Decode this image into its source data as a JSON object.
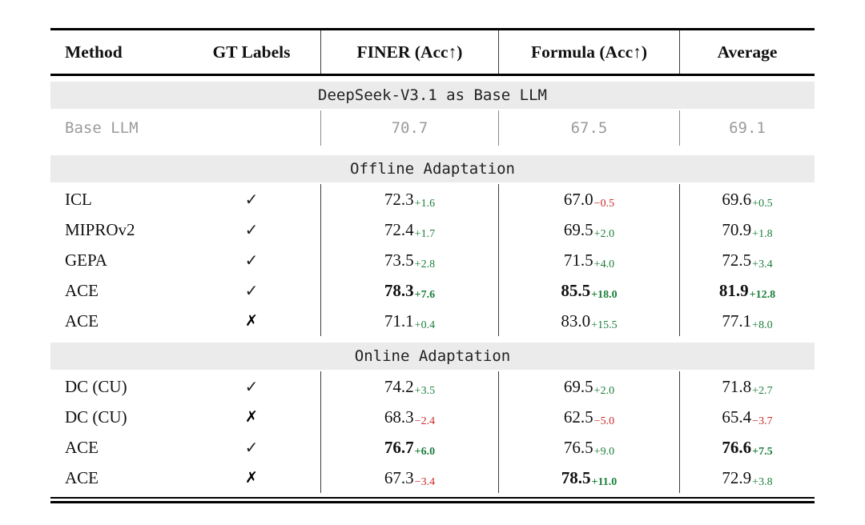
{
  "colors": {
    "green": "#1b7f3b",
    "red": "#cc2b2b",
    "gray": "#9b9b9b",
    "band": "#ebebeb",
    "bandtext": "#222222",
    "ink": "#111111"
  },
  "table": {
    "headers": {
      "method": "Method",
      "gt": "GT Labels",
      "finer": "FINER (Acc↑)",
      "formula": "Formula (Acc↑)",
      "avg": "Average"
    },
    "base_section": {
      "title": "DeepSeek-V3.1 as Base LLM",
      "row": {
        "method": "Base LLM",
        "finer": "70.7",
        "formula": "67.5",
        "avg": "69.1"
      }
    },
    "offline": {
      "title": "Offline Adaptation",
      "rows": [
        {
          "method": "ICL",
          "gt": "✓",
          "finer": "72.3",
          "finer_d": "+1.6",
          "formula": "67.0",
          "formula_d": "−0.5",
          "avg": "69.6",
          "avg_d": "+0.5"
        },
        {
          "method": "MIPROv2",
          "gt": "✓",
          "finer": "72.4",
          "finer_d": "+1.7",
          "formula": "69.5",
          "formula_d": "+2.0",
          "avg": "70.9",
          "avg_d": "+1.8"
        },
        {
          "method": "GEPA",
          "gt": "✓",
          "finer": "73.5",
          "finer_d": "+2.8",
          "formula": "71.5",
          "formula_d": "+4.0",
          "avg": "72.5",
          "avg_d": "+3.4"
        },
        {
          "method": "ACE",
          "gt": "✓",
          "finer": "78.3",
          "finer_d": "+7.6",
          "formula": "85.5",
          "formula_d": "+18.0",
          "avg": "81.9",
          "avg_d": "+12.8"
        },
        {
          "method": "ACE",
          "gt": "✗",
          "finer": "71.1",
          "finer_d": "+0.4",
          "formula": "83.0",
          "formula_d": "+15.5",
          "avg": "77.1",
          "avg_d": "+8.0"
        }
      ]
    },
    "online": {
      "title": "Online Adaptation",
      "rows": [
        {
          "method": "DC (CU)",
          "gt": "✓",
          "finer": "74.2",
          "finer_d": "+3.5",
          "formula": "69.5",
          "formula_d": "+2.0",
          "avg": "71.8",
          "avg_d": "+2.7"
        },
        {
          "method": "DC (CU)",
          "gt": "✗",
          "finer": "68.3",
          "finer_d": "−2.4",
          "formula": "62.5",
          "formula_d": "−5.0",
          "avg": "65.4",
          "avg_d": "−3.7"
        },
        {
          "method": "ACE",
          "gt": "✓",
          "finer": "76.7",
          "finer_d": "+6.0",
          "formula": "76.5",
          "formula_d": "+9.0",
          "avg": "76.6",
          "avg_d": "+7.5"
        },
        {
          "method": "ACE",
          "gt": "✗",
          "finer": "67.3",
          "finer_d": "−3.4",
          "formula": "78.5",
          "formula_d": "+11.0",
          "avg": "72.9",
          "avg_d": "+3.8"
        }
      ]
    }
  }
}
